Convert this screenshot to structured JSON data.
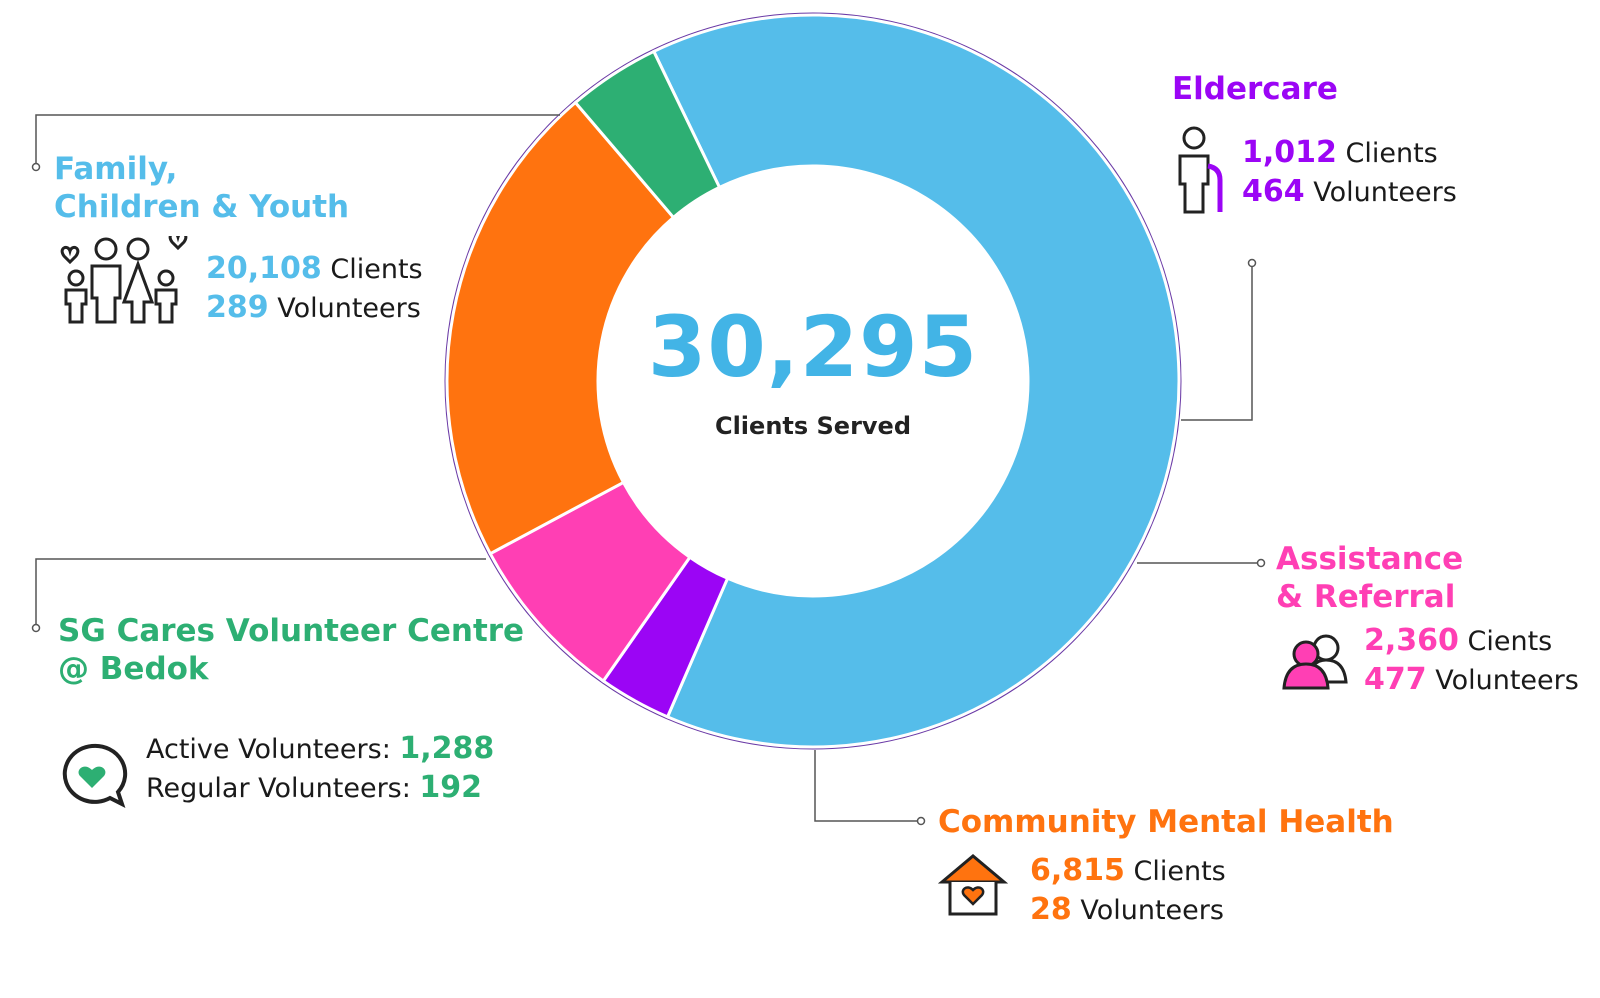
{
  "center": {
    "value": "30,295",
    "label": "Clients Served"
  },
  "colors": {
    "family": "#55bdea",
    "eldercare": "#9b05f5",
    "assistance": "#ff3fb4",
    "mental": "#ff730f",
    "sgcares": "#2daf73",
    "ring": "#6a3aa6"
  },
  "segments": {
    "family": {
      "title_1": "Family,",
      "title_2": "Children & Youth",
      "clients_num": "20,108",
      "clients_word": " Clients",
      "vol_num": "289",
      "vol_word": " Volunteers"
    },
    "eldercare": {
      "title": "Eldercare",
      "clients_num": "1,012",
      "clients_word": " Clients",
      "vol_num": "464",
      "vol_word": " Volunteers"
    },
    "assistance": {
      "title_1": "Assistance",
      "title_2": "& Referral",
      "clients_num": "2,360",
      "clients_word": " Cients",
      "vol_num": "477",
      "vol_word": " Volunteers"
    },
    "mental": {
      "title": "Community Mental Health",
      "clients_num": "6,815",
      "clients_word": " Clients",
      "vol_num": "28",
      "vol_word": " Volunteers"
    },
    "sgcares": {
      "title_1": "SG Cares Volunteer Centre",
      "title_2": "@ Bedok",
      "active_label": "Active Volunteers: ",
      "active_num": "1,288",
      "regular_label": "Regular Volunteers:  ",
      "regular_num": "192"
    }
  },
  "chart_data": {
    "type": "pie",
    "title": "",
    "center_text": "30,295",
    "center_label": "Clients Served",
    "slices": [
      {
        "name": "Family, Children & Youth",
        "value": 20108,
        "color": "#55bdea"
      },
      {
        "name": "Eldercare",
        "value": 1012,
        "color": "#9b05f5"
      },
      {
        "name": "Assistance & Referral",
        "value": 2360,
        "color": "#ff3fb4"
      },
      {
        "name": "Community Mental Health",
        "value": 6815,
        "color": "#ff730f"
      },
      {
        "name": "SG Cares Volunteer Centre @ Bedok",
        "value": 1288,
        "color": "#2daf73"
      }
    ]
  }
}
